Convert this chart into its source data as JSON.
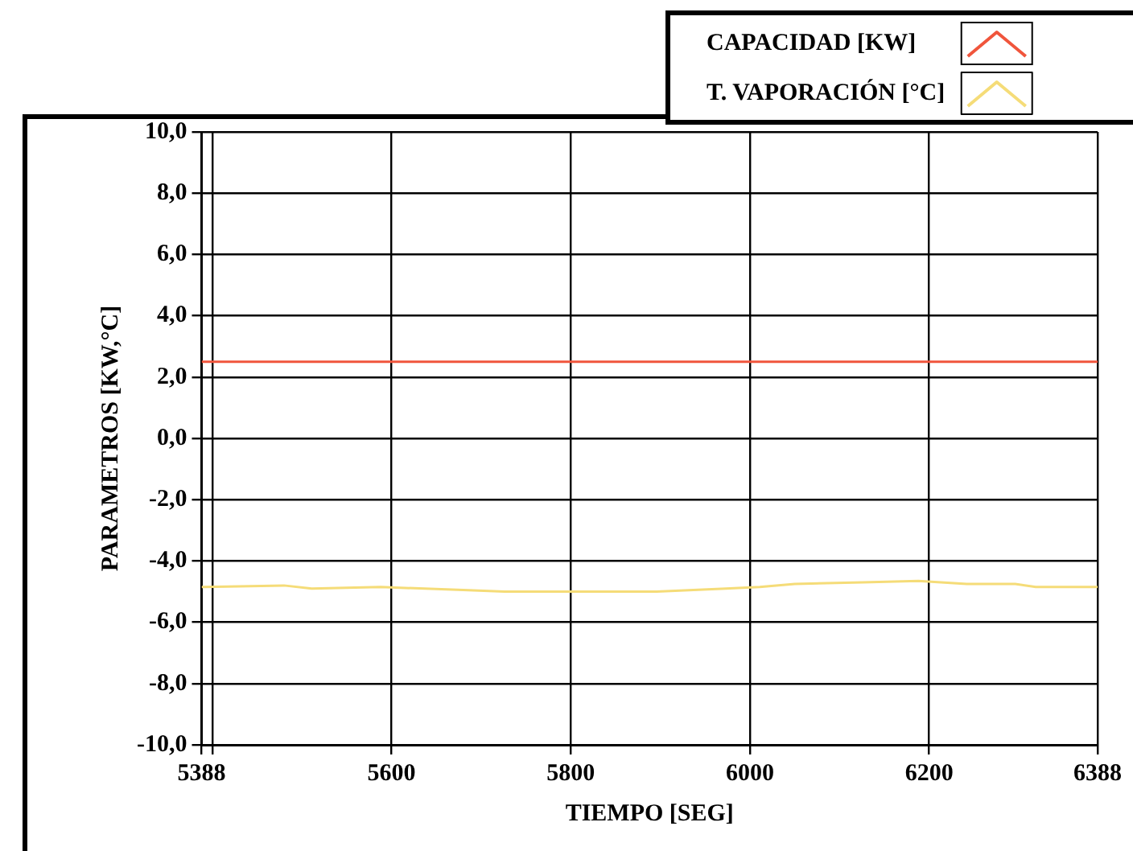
{
  "chart_data": {
    "type": "line",
    "xlabel": "TIEMPO [SEG]",
    "ylabel": "PARAMETROS [KW,°C]",
    "xlim": [
      5388,
      6388
    ],
    "xticks": [
      5388,
      {
        "value": 5400,
        "label": null
      },
      5600,
      5800,
      6000,
      6200,
      6388
    ],
    "ylim": [
      -10,
      10
    ],
    "yticks": [
      {
        "value": -10,
        "label": "-10,0"
      },
      {
        "value": -8,
        "label": "-8,0"
      },
      {
        "value": -6,
        "label": "-6,0"
      },
      {
        "value": -4,
        "label": "-4,0"
      },
      {
        "value": -2,
        "label": "-2,0"
      },
      {
        "value": 0,
        "label": "0,0"
      },
      {
        "value": 2,
        "label": "2,0"
      },
      {
        "value": 4,
        "label": "4,0"
      },
      {
        "value": 6,
        "label": "6,0"
      },
      {
        "value": 8,
        "label": "8,0"
      },
      {
        "value": 10,
        "label": "10,0"
      }
    ],
    "grid": true,
    "legend": "top right",
    "marker": "none",
    "series": [
      {
        "name": "CAPACIDAD [KW]",
        "color": "#f0553c",
        "x": [
          5388,
          6388
        ],
        "values": [
          2.5,
          2.5
        ]
      },
      {
        "name": "T. VAPORACIÓN [°C]",
        "color": "#f5dc78",
        "x": [
          5388,
          5480,
          5511,
          5588,
          5680,
          5726,
          5896,
          5973,
          6011,
          6050,
          6126,
          6188,
          6242,
          6296,
          6319,
          6388
        ],
        "values": [
          -4.85,
          -4.8,
          -4.9,
          -4.85,
          -4.95,
          -5.0,
          -5.0,
          -4.9,
          -4.85,
          -4.75,
          -4.7,
          -4.65,
          -4.75,
          -4.75,
          -4.85,
          -4.85
        ]
      }
    ]
  }
}
